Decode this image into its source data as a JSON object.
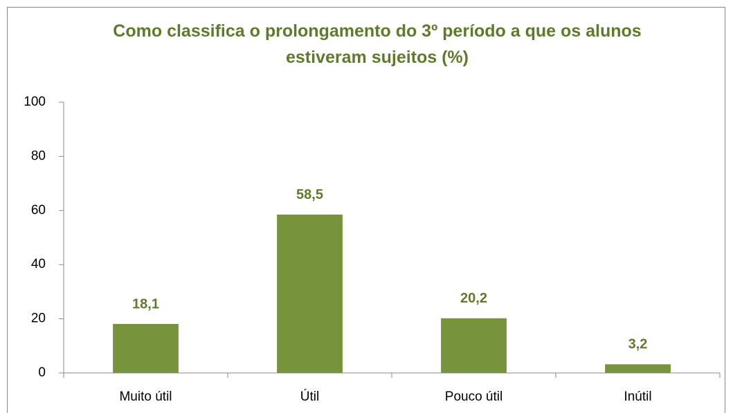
{
  "chart_data": {
    "type": "bar",
    "title": "Como classifica o prolongamento do 3º período a que os alunos estiveram sujeitos (%)",
    "categories": [
      "Muito útil",
      "Útil",
      "Pouco útil",
      "Inútil"
    ],
    "values": [
      18.1,
      58.5,
      20.2,
      3.2
    ],
    "value_labels": [
      "18,1",
      "58,5",
      "20,2",
      "3,2"
    ],
    "color": "#77933c",
    "ylim": [
      0,
      100
    ],
    "yticks": [
      0,
      20,
      40,
      60,
      80,
      100
    ],
    "grid": false
  }
}
